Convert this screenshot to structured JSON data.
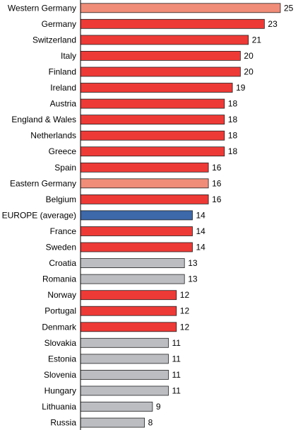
{
  "chart_data": {
    "type": "bar",
    "orientation": "horizontal",
    "title": "",
    "xlabel": "",
    "ylabel": "",
    "xlim": [
      0,
      25
    ],
    "grid": false,
    "legend": "none",
    "categories": [
      "Western Germany",
      "Germany",
      "Switzerland",
      "Italy",
      "Finland",
      "Ireland",
      "Austria",
      "England & Wales",
      "Netherlands",
      "Greece",
      "Spain",
      "Eastern Germany",
      "Belgium",
      "EUROPE (average)",
      "France",
      "Sweden",
      "Croatia",
      "Romania",
      "Norway",
      "Portugal",
      "Denmark",
      "Slovakia",
      "Estonia",
      "Slovenia",
      "Hungary",
      "Lithuania",
      "Russia"
    ],
    "values": [
      25,
      23,
      21,
      20,
      20,
      19,
      18,
      18,
      18,
      18,
      16,
      16,
      16,
      14,
      14,
      14,
      13,
      13,
      12,
      12,
      12,
      11,
      11,
      11,
      11,
      9,
      8
    ],
    "value_labels": [
      "25",
      "23",
      "21",
      "20",
      "20",
      "19",
      "18",
      "18",
      "18",
      "18",
      "16",
      "16",
      "16",
      "14",
      "14",
      "14",
      "13",
      "13",
      "12",
      "12",
      "12",
      "11",
      "11",
      "11",
      "11",
      "9",
      "8"
    ],
    "bar_groups": [
      "light",
      "red",
      "red",
      "red",
      "red",
      "red",
      "red",
      "red",
      "red",
      "red",
      "red",
      "light",
      "red",
      "europe",
      "red",
      "red",
      "gray",
      "gray",
      "red",
      "red",
      "red",
      "gray",
      "gray",
      "gray",
      "gray",
      "gray",
      "gray"
    ],
    "colors": {
      "red": "#ee3a36",
      "light": "#f08d79",
      "europe": "#3d68a9",
      "gray": "#bcbdc1",
      "outline": "#222222",
      "axis": "#000000"
    }
  }
}
